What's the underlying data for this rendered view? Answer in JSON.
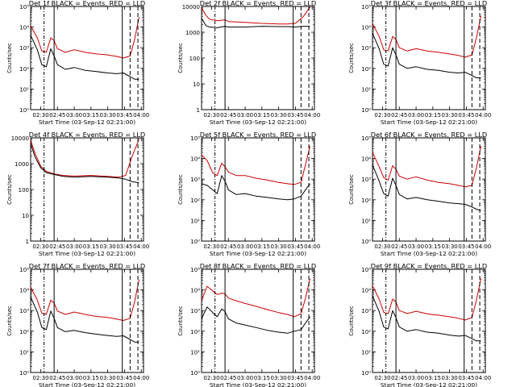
{
  "chart_data": [
    {
      "type": "line",
      "title": "Det 1f BLACK = Events, RED = LLD",
      "xlabel": "Start Time (03-Sep-12 02:21:00)",
      "ylabel": "Counts/sec",
      "yscale": "log",
      "ylim": [
        1,
        100000
      ],
      "y_tick_labels": [
        "10⁰",
        "10¹",
        "10²",
        "10³",
        "10⁴",
        "10⁵"
      ],
      "x_tick_labels": [
        "02:30",
        "02:45",
        "03:00",
        "03:15",
        "03:30",
        "03:45",
        "04:00"
      ],
      "x": [
        "02:21",
        "02:27",
        "02:31",
        "02:35",
        "02:39",
        "02:42",
        "02:45",
        "02:52",
        "03:00",
        "03:10",
        "03:20",
        "03:30",
        "03:38",
        "03:44",
        "03:50",
        "03:54",
        "03:58"
      ],
      "series": [
        {
          "color": "#cc0000",
          "values": [
            12000,
            3000,
            700,
            600,
            3000,
            2200,
            900,
            600,
            800,
            600,
            500,
            450,
            380,
            320,
            400,
            2500,
            30000
          ]
        },
        {
          "color": "#000000",
          "values": [
            4000,
            800,
            150,
            120,
            900,
            400,
            150,
            90,
            110,
            80,
            70,
            60,
            55,
            60,
            40,
            30,
            30
          ]
        }
      ],
      "vlines": [
        {
          "time": "02:33",
          "style": "dash-dot"
        },
        {
          "time": "02:42",
          "style": "solid"
        },
        {
          "time": "03:43",
          "style": "solid"
        },
        {
          "time": "03:50",
          "style": "dashed"
        },
        {
          "time": "03:57",
          "style": "dashed"
        }
      ]
    },
    {
      "type": "line",
      "title": "Det 2f BLACK = Events, RED = LLD",
      "xlabel": "Start Time (03-Sep-12 02:21:00)",
      "ylabel": "Counts/sec",
      "yscale": "log",
      "ylim": [
        1,
        10000
      ],
      "y_tick_labels": [
        "1",
        "10",
        "100",
        "1000",
        "10000"
      ],
      "x_tick_labels": [
        "02:30",
        "02:45",
        "03:00",
        "03:15",
        "03:30",
        "03:45",
        "04:00"
      ],
      "x": [
        "02:21",
        "02:25",
        "02:28",
        "02:35",
        "02:42",
        "02:45",
        "03:00",
        "03:15",
        "03:30",
        "03:38",
        "03:45",
        "03:52",
        "03:58"
      ],
      "series": [
        {
          "color": "#cc0000",
          "values": [
            9000,
            4500,
            3200,
            2800,
            3000,
            2600,
            2400,
            2200,
            2100,
            2100,
            2200,
            4000,
            9500
          ]
        },
        {
          "color": "#000000",
          "values": [
            3500,
            1800,
            1600,
            1500,
            1700,
            1600,
            1600,
            1700,
            1650,
            1650,
            1600,
            1700,
            1700
          ]
        }
      ],
      "vlines": [
        {
          "time": "02:33",
          "style": "dash-dot"
        },
        {
          "time": "02:42",
          "style": "solid"
        },
        {
          "time": "03:43",
          "style": "solid"
        },
        {
          "time": "03:50",
          "style": "dashed"
        },
        {
          "time": "03:57",
          "style": "dashed"
        }
      ]
    },
    {
      "type": "line",
      "title": "Det 3f BLACK = Events, RED = LLD",
      "xlabel": "Start Time (03-Sep-12 02:21:00)",
      "ylabel": "Counts/sec",
      "yscale": "log",
      "ylim": [
        1,
        100000
      ],
      "y_tick_labels": [
        "10⁰",
        "10¹",
        "10²",
        "10³",
        "10⁴",
        "10⁵"
      ],
      "x_tick_labels": [
        "02:30",
        "02:45",
        "03:00",
        "03:15",
        "03:30",
        "03:45",
        "04:00"
      ],
      "x": [
        "02:21",
        "02:27",
        "02:31",
        "02:35",
        "02:39",
        "02:42",
        "02:45",
        "02:52",
        "03:00",
        "03:10",
        "03:20",
        "03:30",
        "03:38",
        "03:44",
        "03:50",
        "03:54",
        "03:58"
      ],
      "series": [
        {
          "color": "#cc0000",
          "values": [
            15000,
            3500,
            800,
            700,
            3500,
            2500,
            1000,
            700,
            900,
            700,
            600,
            500,
            420,
            350,
            450,
            3000,
            35000
          ]
        },
        {
          "color": "#000000",
          "values": [
            5000,
            900,
            160,
            130,
            1000,
            450,
            160,
            100,
            120,
            90,
            80,
            65,
            60,
            65,
            45,
            35,
            35
          ]
        }
      ],
      "vlines": [
        {
          "time": "02:33",
          "style": "dash-dot"
        },
        {
          "time": "02:42",
          "style": "solid"
        },
        {
          "time": "03:43",
          "style": "solid"
        },
        {
          "time": "03:50",
          "style": "dashed"
        },
        {
          "time": "03:57",
          "style": "dashed"
        }
      ]
    },
    {
      "type": "line",
      "title": "Det 4f BLACK = Events, RED = LLD",
      "xlabel": "Start Time (03-Sep-12 02:21:00)",
      "ylabel": "Counts/sec",
      "yscale": "log",
      "ylim": [
        1,
        10000
      ],
      "y_tick_labels": [
        "1",
        "10",
        "100",
        "1000",
        "10000"
      ],
      "x_tick_labels": [
        "02:30",
        "02:45",
        "03:00",
        "03:15",
        "03:30",
        "03:45",
        "04:00"
      ],
      "x": [
        "02:21",
        "02:25",
        "02:30",
        "02:35",
        "02:42",
        "02:50",
        "03:00",
        "03:15",
        "03:30",
        "03:40",
        "03:46",
        "03:52",
        "03:58"
      ],
      "series": [
        {
          "color": "#cc0000",
          "values": [
            8000,
            2500,
            800,
            500,
            400,
            350,
            330,
            350,
            320,
            300,
            350,
            2000,
            9000
          ]
        },
        {
          "color": "#000000",
          "values": [
            6000,
            1800,
            700,
            450,
            380,
            320,
            300,
            320,
            300,
            280,
            250,
            200,
            180
          ]
        }
      ],
      "vlines": [
        {
          "time": "02:33",
          "style": "dash-dot"
        },
        {
          "time": "02:42",
          "style": "solid"
        },
        {
          "time": "03:43",
          "style": "solid"
        },
        {
          "time": "03:50",
          "style": "dashed"
        },
        {
          "time": "03:57",
          "style": "dashed"
        }
      ]
    },
    {
      "type": "line",
      "title": "Det 5f BLACK = Events, RED = LLD",
      "xlabel": "Start Time (03-Sep-12 02:21:00)",
      "ylabel": "Counts/sec",
      "yscale": "log",
      "ylim": [
        1,
        100000
      ],
      "y_tick_labels": [
        "10⁰",
        "10¹",
        "10²",
        "10³",
        "10⁴",
        "10⁵"
      ],
      "x_tick_labels": [
        "02:30",
        "02:45",
        "03:00",
        "03:15",
        "03:30",
        "03:45",
        "04:00"
      ],
      "x": [
        "02:21",
        "02:26",
        "02:31",
        "02:35",
        "02:39",
        "02:42",
        "02:45",
        "02:52",
        "03:00",
        "03:10",
        "03:20",
        "03:30",
        "03:38",
        "03:44",
        "03:50",
        "03:54",
        "03:58"
      ],
      "series": [
        {
          "color": "#cc0000",
          "values": [
            15000,
            8000,
            2000,
            1500,
            6000,
            4000,
            2200,
            1500,
            1500,
            1100,
            900,
            700,
            600,
            550,
            700,
            5000,
            40000
          ]
        },
        {
          "color": "#000000",
          "values": [
            600,
            500,
            300,
            200,
            1500,
            800,
            300,
            180,
            200,
            150,
            130,
            110,
            100,
            110,
            150,
            300,
            600
          ]
        }
      ],
      "vlines": [
        {
          "time": "02:33",
          "style": "dash-dot"
        },
        {
          "time": "02:42",
          "style": "solid"
        },
        {
          "time": "03:43",
          "style": "solid"
        },
        {
          "time": "03:50",
          "style": "dashed"
        },
        {
          "time": "03:57",
          "style": "dashed"
        }
      ]
    },
    {
      "type": "line",
      "title": "Det 6f BLACK = Events, RED = LLD",
      "xlabel": "Start Time (03-Sep-12 02:21:00)",
      "ylabel": "Counts/sec",
      "yscale": "log",
      "ylim": [
        1,
        100000
      ],
      "y_tick_labels": [
        "10⁰",
        "10¹",
        "10²",
        "10³",
        "10⁴",
        "10⁵"
      ],
      "x_tick_labels": [
        "02:30",
        "02:45",
        "03:00",
        "03:15",
        "03:30",
        "03:45",
        "04:00"
      ],
      "x": [
        "02:21",
        "02:27",
        "02:31",
        "02:35",
        "02:39",
        "02:42",
        "02:45",
        "02:52",
        "03:00",
        "03:10",
        "03:20",
        "03:30",
        "03:38",
        "03:44",
        "03:50",
        "03:54",
        "03:58"
      ],
      "series": [
        {
          "color": "#cc0000",
          "values": [
            20000,
            4000,
            1200,
            900,
            4500,
            3000,
            1400,
            1000,
            1300,
            900,
            700,
            600,
            500,
            420,
            500,
            3500,
            40000
          ]
        },
        {
          "color": "#000000",
          "values": [
            5000,
            800,
            200,
            150,
            1100,
            500,
            180,
            110,
            130,
            100,
            85,
            70,
            65,
            60,
            45,
            35,
            30
          ]
        }
      ],
      "vlines": [
        {
          "time": "02:33",
          "style": "dash-dot"
        },
        {
          "time": "02:42",
          "style": "solid"
        },
        {
          "time": "03:43",
          "style": "solid"
        },
        {
          "time": "03:50",
          "style": "dashed"
        },
        {
          "time": "03:57",
          "style": "dashed"
        }
      ]
    },
    {
      "type": "line",
      "title": "Det 7f BLACK = Events, RED = LLD",
      "xlabel": "Start Time (03-Sep-12 02:21:00)",
      "ylabel": "Counts/sec",
      "yscale": "log",
      "ylim": [
        1,
        100000
      ],
      "y_tick_labels": [
        "10⁰",
        "10¹",
        "10²",
        "10³",
        "10⁴",
        "10⁵"
      ],
      "x_tick_labels": [
        "02:30",
        "02:45",
        "03:00",
        "03:15",
        "03:30",
        "03:45",
        "04:00"
      ],
      "x": [
        "02:21",
        "02:27",
        "02:31",
        "02:35",
        "02:39",
        "02:42",
        "02:45",
        "02:52",
        "03:00",
        "03:10",
        "03:20",
        "03:30",
        "03:38",
        "03:44",
        "03:50",
        "03:54",
        "03:58"
      ],
      "series": [
        {
          "color": "#cc0000",
          "values": [
            14000,
            3200,
            750,
            650,
            3200,
            2300,
            950,
            650,
            850,
            650,
            520,
            460,
            390,
            330,
            420,
            2600,
            32000
          ]
        },
        {
          "color": "#000000",
          "values": [
            4500,
            850,
            150,
            120,
            950,
            420,
            150,
            95,
            110,
            85,
            72,
            62,
            56,
            60,
            40,
            30,
            30
          ]
        }
      ],
      "vlines": [
        {
          "time": "02:33",
          "style": "dash-dot"
        },
        {
          "time": "02:42",
          "style": "solid"
        },
        {
          "time": "03:43",
          "style": "solid"
        },
        {
          "time": "03:50",
          "style": "dashed"
        },
        {
          "time": "03:57",
          "style": "dashed"
        }
      ]
    },
    {
      "type": "line",
      "title": "Det 8f BLACK = Events, RED = LLD",
      "xlabel": "Start Time (03-Sep-12 02:21:00)",
      "ylabel": "Counts/sec",
      "yscale": "log",
      "ylim": [
        1,
        100000
      ],
      "y_tick_labels": [
        "10⁰",
        "10¹",
        "10²",
        "10³",
        "10⁴",
        "10⁵"
      ],
      "x_tick_labels": [
        "02:30",
        "02:45",
        "03:00",
        "03:15",
        "03:30",
        "03:45",
        "04:00"
      ],
      "x": [
        "02:21",
        "02:26",
        "02:31",
        "02:35",
        "02:39",
        "02:42",
        "02:45",
        "02:52",
        "03:00",
        "03:10",
        "03:20",
        "03:30",
        "03:38",
        "03:44",
        "03:50",
        "03:54",
        "03:58"
      ],
      "series": [
        {
          "color": "#cc0000",
          "values": [
            3000,
            15000,
            9000,
            6000,
            7000,
            6500,
            4000,
            3000,
            2200,
            1600,
            1100,
            800,
            650,
            500,
            700,
            4000,
            35000
          ]
        },
        {
          "color": "#000000",
          "values": [
            400,
            1500,
            800,
            500,
            1200,
            900,
            400,
            250,
            200,
            150,
            110,
            90,
            80,
            100,
            120,
            250,
            500
          ]
        }
      ],
      "vlines": [
        {
          "time": "02:33",
          "style": "dash-dot"
        },
        {
          "time": "02:42",
          "style": "solid"
        },
        {
          "time": "03:43",
          "style": "solid"
        },
        {
          "time": "03:50",
          "style": "dashed"
        },
        {
          "time": "03:57",
          "style": "dashed"
        }
      ]
    },
    {
      "type": "line",
      "title": "Det 9f BLACK = Events, RED = LLD",
      "xlabel": "Start Time (03-Sep-12 02:21:00)",
      "ylabel": "Counts/sec",
      "yscale": "log",
      "ylim": [
        1,
        100000
      ],
      "y_tick_labels": [
        "10⁰",
        "10¹",
        "10²",
        "10³",
        "10⁴",
        "10⁵"
      ],
      "x_tick_labels": [
        "02:30",
        "02:45",
        "03:00",
        "03:15",
        "03:30",
        "03:45",
        "04:00"
      ],
      "x": [
        "02:21",
        "02:27",
        "02:31",
        "02:35",
        "02:39",
        "02:42",
        "02:45",
        "02:52",
        "03:00",
        "03:10",
        "03:20",
        "03:30",
        "03:38",
        "03:44",
        "03:50",
        "03:54",
        "03:58"
      ],
      "series": [
        {
          "color": "#cc0000",
          "values": [
            16000,
            3600,
            820,
            700,
            3600,
            2600,
            1000,
            720,
            920,
            700,
            600,
            500,
            420,
            350,
            460,
            3100,
            36000
          ]
        },
        {
          "color": "#000000",
          "values": [
            5200,
            900,
            160,
            130,
            1000,
            450,
            160,
            100,
            120,
            90,
            80,
            65,
            58,
            62,
            44,
            34,
            34
          ]
        }
      ],
      "vlines": [
        {
          "time": "02:33",
          "style": "dash-dot"
        },
        {
          "time": "02:42",
          "style": "solid"
        },
        {
          "time": "03:43",
          "style": "solid"
        },
        {
          "time": "03:50",
          "style": "dashed"
        },
        {
          "time": "03:57",
          "style": "dashed"
        }
      ]
    }
  ]
}
